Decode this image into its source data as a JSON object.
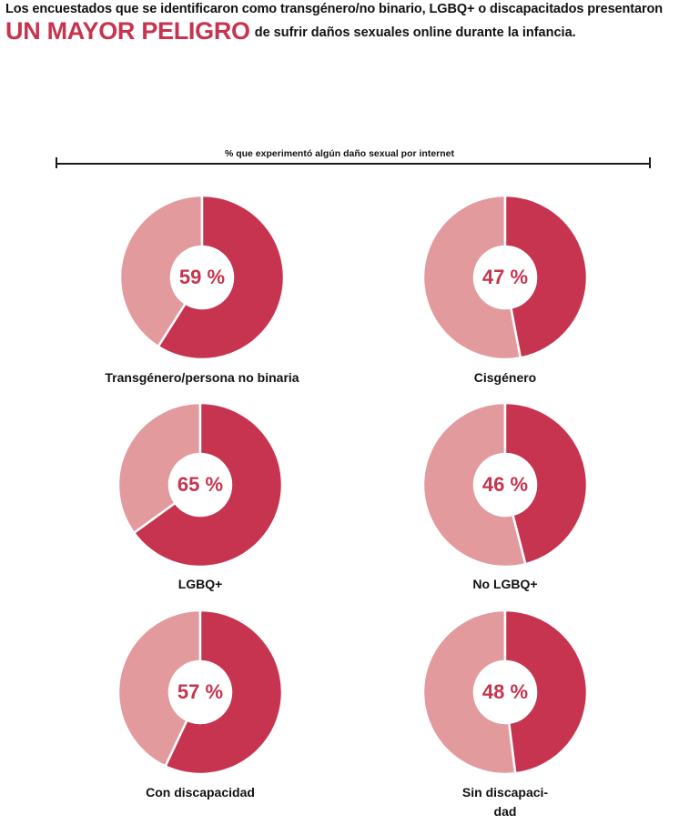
{
  "header": {
    "intro": "Los encuestados que se identificaron como transgénero/no binario, LGBQ+ o discapacitados presentaron",
    "headline": "UN MAYOR PELIGRO",
    "headline_rest": "de sufrir daños sexuales online durante la infancia."
  },
  "colors": {
    "accent": "#c6344f",
    "remainder": "#e29a9d",
    "text": "#111111"
  },
  "chart_data": {
    "type": "pie",
    "title": "% que experimentó algún daño sexual por internet",
    "unit": "%",
    "items": [
      {
        "label": "Transgénero/persona no binaria",
        "value": 59,
        "display": "59 %"
      },
      {
        "label": "Cisgénero",
        "value": 47,
        "display": "47 %"
      },
      {
        "label": "LGBQ+",
        "value": 65,
        "display": "65 %"
      },
      {
        "label": "No LGBQ+",
        "value": 46,
        "display": "46 %"
      },
      {
        "label": "Con discapacidad",
        "value": 57,
        "display": "57 %"
      },
      {
        "label": "Sin discapaci-\ndad",
        "value": 48,
        "display": "48 %"
      }
    ]
  }
}
